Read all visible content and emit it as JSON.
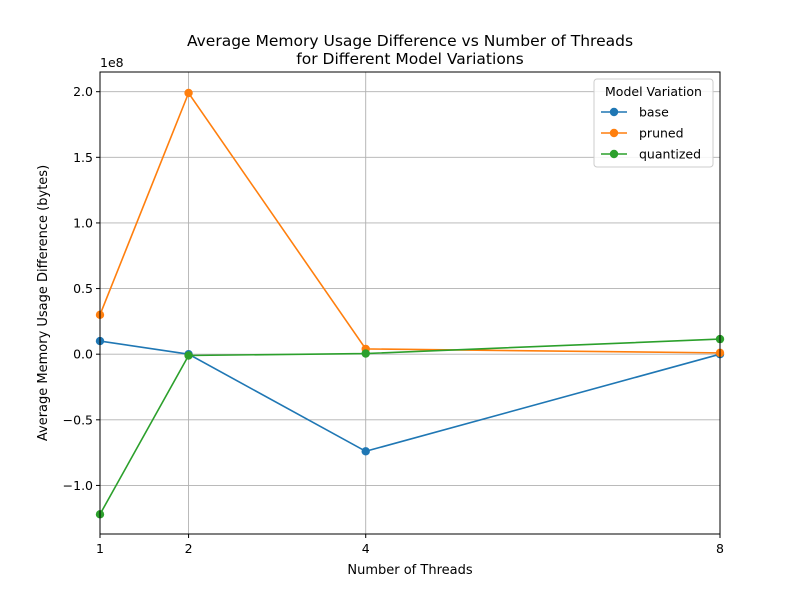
{
  "chart_data": {
    "type": "line",
    "title_line1": "Average Memory Usage Difference vs Number of Threads",
    "title_line2": "for Different Model Variations",
    "xlabel": "Number of Threads",
    "ylabel": "Average Memory Usage Difference (bytes)",
    "y_offset_label": "1e8",
    "x": [
      1,
      2,
      4,
      8
    ],
    "x_ticks": [
      1,
      2,
      4,
      8
    ],
    "xlim": [
      1,
      8
    ],
    "ylim": [
      -137000000,
      215000000
    ],
    "y_ticks": [
      {
        "value": -100000000,
        "label": "−1.0"
      },
      {
        "value": -50000000,
        "label": "−0.5"
      },
      {
        "value": 0,
        "label": "0.0"
      },
      {
        "value": 50000000,
        "label": "0.5"
      },
      {
        "value": 100000000,
        "label": "1.0"
      },
      {
        "value": 150000000,
        "label": "1.5"
      },
      {
        "value": 200000000,
        "label": "2.0"
      }
    ],
    "grid": true,
    "legend_title": "Model Variation",
    "legend_position": "top-right",
    "series": [
      {
        "name": "base",
        "color": "#1f77b4",
        "values": [
          10000000,
          0,
          -74000000,
          0
        ]
      },
      {
        "name": "pruned",
        "color": "#ff7f0e",
        "values": [
          30000000,
          199000000,
          4000000,
          1000000
        ]
      },
      {
        "name": "quantized",
        "color": "#2ca02c",
        "values": [
          -122000000,
          -1000000,
          500000,
          11500000
        ]
      }
    ]
  }
}
